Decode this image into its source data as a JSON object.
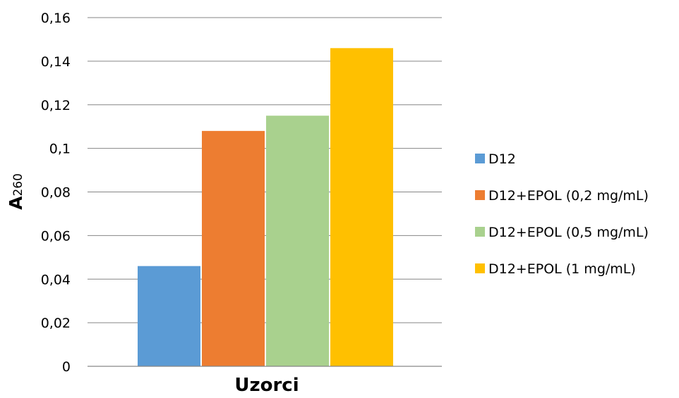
{
  "chart_data": {
    "type": "bar",
    "xlabel": "Uzorci",
    "ylabel": {
      "main": "A",
      "subscript": "260"
    },
    "ylim": [
      0,
      0.16
    ],
    "yticks": [
      "0",
      "0,02",
      "0,04",
      "0,06",
      "0,08",
      "0,1",
      "0,12",
      "0,14",
      "0,16"
    ],
    "grid": true,
    "legend_position": "right",
    "series": [
      {
        "name": "D12",
        "value": 0.046,
        "color": "#5b9bd5"
      },
      {
        "name": "D12+EPOL (0,2 mg/mL)",
        "value": 0.108,
        "color": "#ed7d31"
      },
      {
        "name": "D12+EPOL (0,5 mg/mL)",
        "value": 0.115,
        "color": "#a9d18e"
      },
      {
        "name": "D12+EPOL (1 mg/mL)",
        "value": 0.146,
        "color": "#ffc000"
      }
    ]
  }
}
